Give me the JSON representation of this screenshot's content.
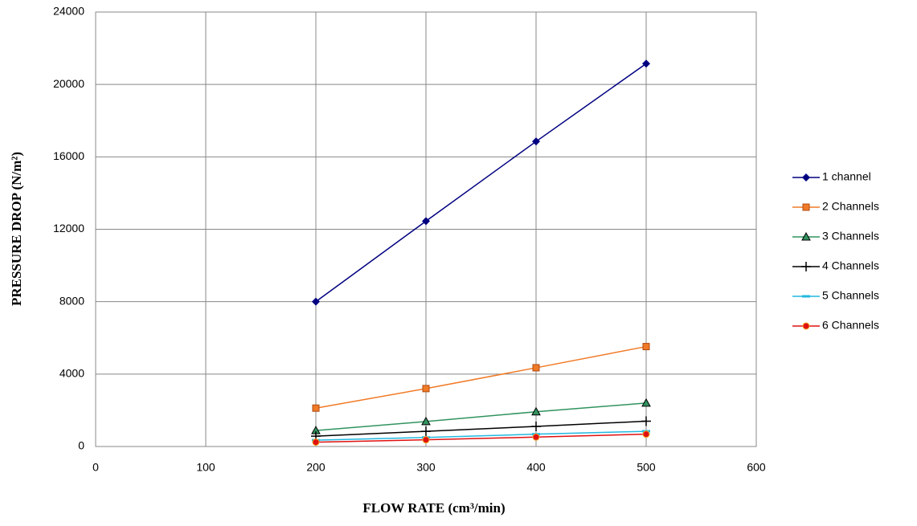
{
  "chart_data": {
    "type": "line",
    "x_label": "FLOW RATE (cm³/min)",
    "y_label": "PRESSURE DROP (N/m²)",
    "x": [
      200,
      300,
      400,
      500
    ],
    "series": [
      {
        "name": "1 channel",
        "color": "#000080",
        "marker": "diamond",
        "values": [
          8000,
          12450,
          16850,
          21150
        ]
      },
      {
        "name": "2 Channels",
        "color": "#f07a26",
        "marker": "square",
        "values": [
          2120,
          3200,
          4350,
          5520
        ]
      },
      {
        "name": "3 Channels",
        "color": "#31935f",
        "marker": "triangle",
        "values": [
          880,
          1380,
          1920,
          2400
        ]
      },
      {
        "name": "4 Channels",
        "color": "#000000",
        "marker": "plus",
        "values": [
          570,
          840,
          1110,
          1400
        ]
      },
      {
        "name": "5 Channels",
        "color": "#22b8e0",
        "marker": "dash",
        "values": [
          350,
          500,
          680,
          840
        ]
      },
      {
        "name": "6 Channels",
        "color": "#e01010",
        "marker": "circle",
        "values": [
          240,
          370,
          520,
          680
        ]
      }
    ],
    "xlim": [
      0,
      600
    ],
    "xticks": [
      0,
      100,
      200,
      300,
      400,
      500,
      600
    ],
    "ylim": [
      0,
      24000
    ],
    "yticks": [
      0,
      4000,
      8000,
      12000,
      16000,
      20000,
      24000
    ],
    "grid": true,
    "legend": "right"
  }
}
